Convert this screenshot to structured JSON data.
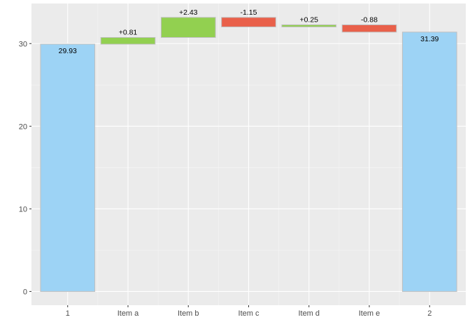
{
  "chart_data": {
    "type": "bar",
    "subtype": "waterfall",
    "categories": [
      "1",
      "Item a",
      "Item b",
      "Item c",
      "Item d",
      "Item e",
      "2"
    ],
    "bars": [
      {
        "category": "1",
        "kind": "total",
        "start": 0,
        "end": 29.93,
        "label": "29.93"
      },
      {
        "category": "Item a",
        "kind": "increase",
        "start": 29.93,
        "end": 30.74,
        "label": "+0.81"
      },
      {
        "category": "Item b",
        "kind": "increase",
        "start": 30.74,
        "end": 33.17,
        "label": "+2.43"
      },
      {
        "category": "Item c",
        "kind": "decrease",
        "start": 33.17,
        "end": 32.02,
        "label": "-1.15"
      },
      {
        "category": "Item d",
        "kind": "increase",
        "start": 32.02,
        "end": 32.27,
        "label": "+0.25"
      },
      {
        "category": "Item e",
        "kind": "decrease",
        "start": 32.27,
        "end": 31.39,
        "label": "-0.88"
      },
      {
        "category": "2",
        "kind": "total",
        "start": 0,
        "end": 31.39,
        "label": "31.39"
      }
    ],
    "y_ticks": [
      0,
      10,
      20,
      30
    ],
    "ylim": [
      -1.66,
      34.85
    ],
    "title": "",
    "xlabel": "",
    "ylabel": "",
    "grid": true,
    "legend": "none",
    "colors": {
      "total": "#9dd3f5",
      "increase": "#92d050",
      "decrease": "#e9604a",
      "bar_border": "#bfbfbf",
      "panel_background": "#ebebeb",
      "grid_major": "#ffffff",
      "grid_minor": "#f5f5f5",
      "tick_text": "#4d4d4d",
      "label_text": "#000000"
    }
  }
}
